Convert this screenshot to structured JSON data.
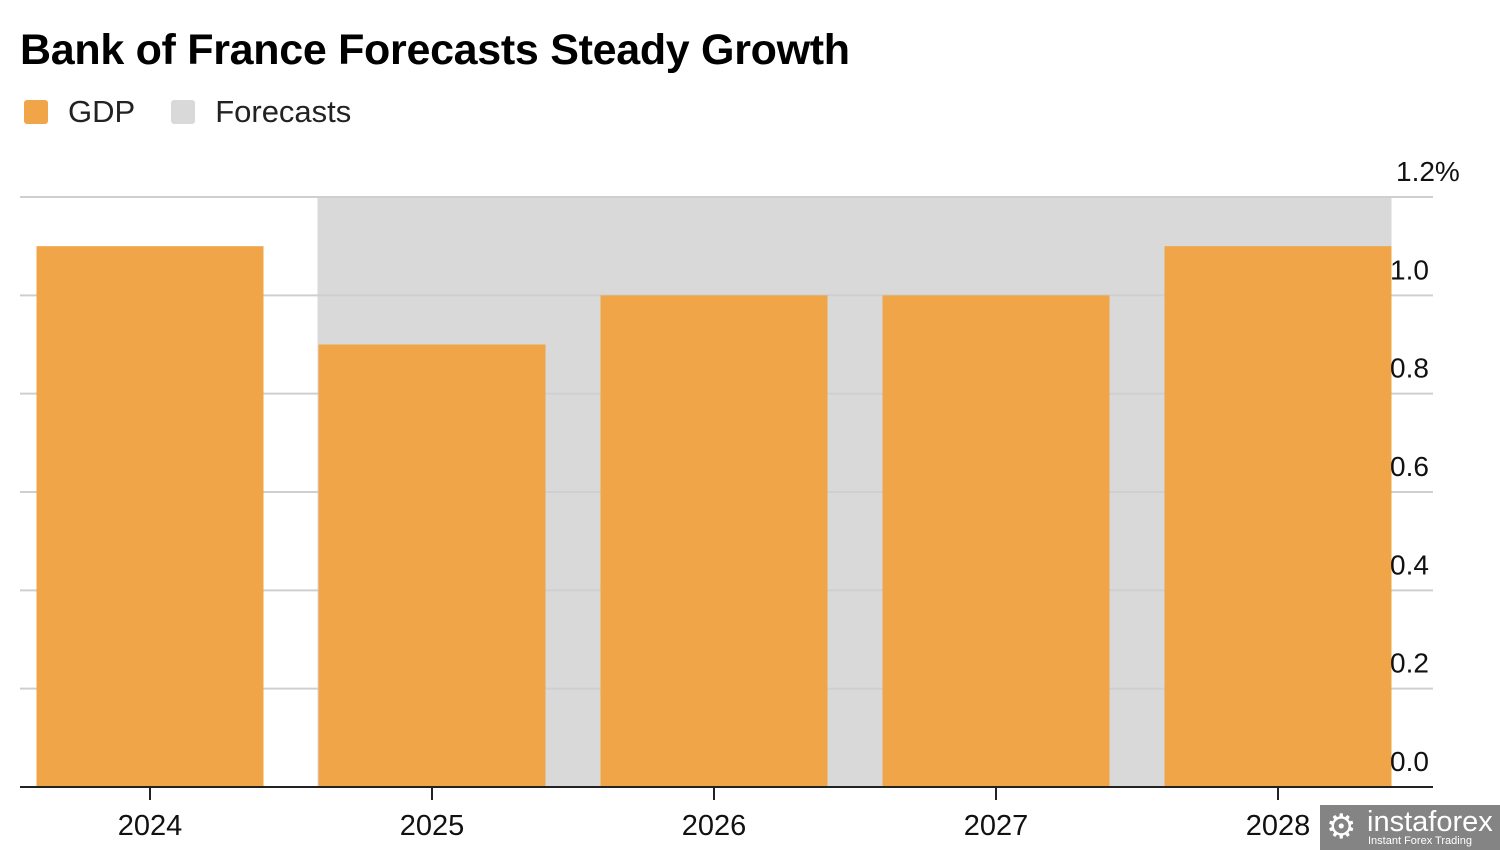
{
  "chart_data": {
    "type": "bar",
    "title": "Bank of France Forecasts Steady Growth",
    "legend": [
      {
        "label": "GDP",
        "color": "#f0a548"
      },
      {
        "label": "Forecasts",
        "color": "#d9d9d9"
      }
    ],
    "legend_placement": "top-left",
    "categories": [
      "2024",
      "2025",
      "2026",
      "2027",
      "2028"
    ],
    "series": [
      {
        "name": "GDP",
        "values": [
          1.1,
          0.9,
          1.0,
          1.0,
          1.1
        ]
      }
    ],
    "forecast_categories": [
      "2025",
      "2026",
      "2027",
      "2028"
    ],
    "ylim": [
      0,
      1.2
    ],
    "yticks": [
      0.0,
      0.2,
      0.4,
      0.6,
      0.8,
      1.0,
      1.2
    ],
    "ytick_labels": [
      "0.0",
      "0.2",
      "0.4",
      "0.6",
      "0.8",
      "1.0",
      "1.2%"
    ],
    "y_axis_side": "right",
    "grid": true,
    "xlabel": "",
    "ylabel": ""
  },
  "watermark": {
    "name": "instaforex",
    "tagline": "Instant Forex Trading"
  }
}
